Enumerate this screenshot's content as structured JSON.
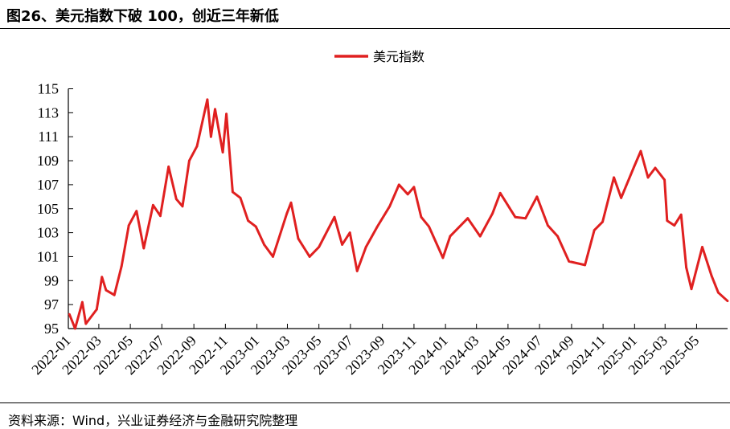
{
  "title": "图26、美元指数下破 100，创近三年新低",
  "source": "资料来源：Wind，兴业证券经济与金融研究院整理",
  "chart_data": {
    "type": "line",
    "title": "图26、美元指数下破 100，创近三年新低",
    "xlabel": "",
    "ylabel": "",
    "ylim": [
      95,
      115
    ],
    "yticks": [
      "95",
      "97",
      "99",
      "101",
      "103",
      "105",
      "107",
      "109",
      "111",
      "113",
      "115"
    ],
    "xlim": [
      "2022-01-01",
      "2025-06-30"
    ],
    "xticks": [
      "2022-01",
      "2022-03",
      "2022-05",
      "2022-07",
      "2022-09",
      "2022-11",
      "2023-01",
      "2023-03",
      "2023-05",
      "2023-07",
      "2023-09",
      "2023-11",
      "2024-01",
      "2024-03",
      "2024-05",
      "2024-07",
      "2024-09",
      "2024-11",
      "2025-01",
      "2025-03",
      "2025-05"
    ],
    "grid": false,
    "legend": "top-center",
    "series": [
      {
        "name": "美元指数",
        "color": "#e02020",
        "x": [
          "2022-01-03",
          "2022-01-14",
          "2022-01-28",
          "2022-02-04",
          "2022-02-25",
          "2022-03-07",
          "2022-03-15",
          "2022-03-31",
          "2022-04-14",
          "2022-04-28",
          "2022-05-13",
          "2022-05-27",
          "2022-06-14",
          "2022-06-28",
          "2022-07-14",
          "2022-07-29",
          "2022-08-10",
          "2022-08-23",
          "2022-09-07",
          "2022-09-27",
          "2022-10-04",
          "2022-10-12",
          "2022-10-27",
          "2022-11-03",
          "2022-11-15",
          "2022-11-30",
          "2022-12-15",
          "2022-12-30",
          "2023-01-15",
          "2023-02-01",
          "2023-02-28",
          "2023-03-08",
          "2023-03-22",
          "2023-04-13",
          "2023-05-01",
          "2023-05-31",
          "2023-06-15",
          "2023-06-30",
          "2023-07-14",
          "2023-07-31",
          "2023-08-22",
          "2023-09-15",
          "2023-10-03",
          "2023-10-20",
          "2023-11-01",
          "2023-11-15",
          "2023-11-30",
          "2023-12-27",
          "2024-01-10",
          "2024-02-13",
          "2024-03-08",
          "2024-04-01",
          "2024-04-16",
          "2024-05-15",
          "2024-06-04",
          "2024-06-26",
          "2024-07-17",
          "2024-08-05",
          "2024-08-27",
          "2024-09-27",
          "2024-10-15",
          "2024-10-31",
          "2024-11-22",
          "2024-12-06",
          "2024-12-31",
          "2025-01-13",
          "2025-01-27",
          "2025-02-10",
          "2025-02-28",
          "2025-03-05",
          "2025-03-19",
          "2025-04-01",
          "2025-04-11",
          "2025-04-21",
          "2025-05-12",
          "2025-05-30",
          "2025-06-12",
          "2025-06-30"
        ],
        "values": [
          96.2,
          95.0,
          97.2,
          95.4,
          96.6,
          99.3,
          98.2,
          97.8,
          100.2,
          103.6,
          104.8,
          101.7,
          105.3,
          104.4,
          108.5,
          105.8,
          105.2,
          109.0,
          110.2,
          114.1,
          111.0,
          113.3,
          109.7,
          112.9,
          106.4,
          105.9,
          104.0,
          103.5,
          102.0,
          101.0,
          104.6,
          105.5,
          102.5,
          101.0,
          101.8,
          104.3,
          102.0,
          103.0,
          99.8,
          101.8,
          103.5,
          105.2,
          107.0,
          106.2,
          106.8,
          104.3,
          103.5,
          100.9,
          102.7,
          104.2,
          102.7,
          104.6,
          106.3,
          104.3,
          104.2,
          106.0,
          103.6,
          102.7,
          100.6,
          100.3,
          103.2,
          103.9,
          107.6,
          105.9,
          108.5,
          109.8,
          107.6,
          108.4,
          107.4,
          104.0,
          103.6,
          104.5,
          100.1,
          98.3,
          101.8,
          99.4,
          98.0,
          97.3
        ]
      }
    ]
  }
}
